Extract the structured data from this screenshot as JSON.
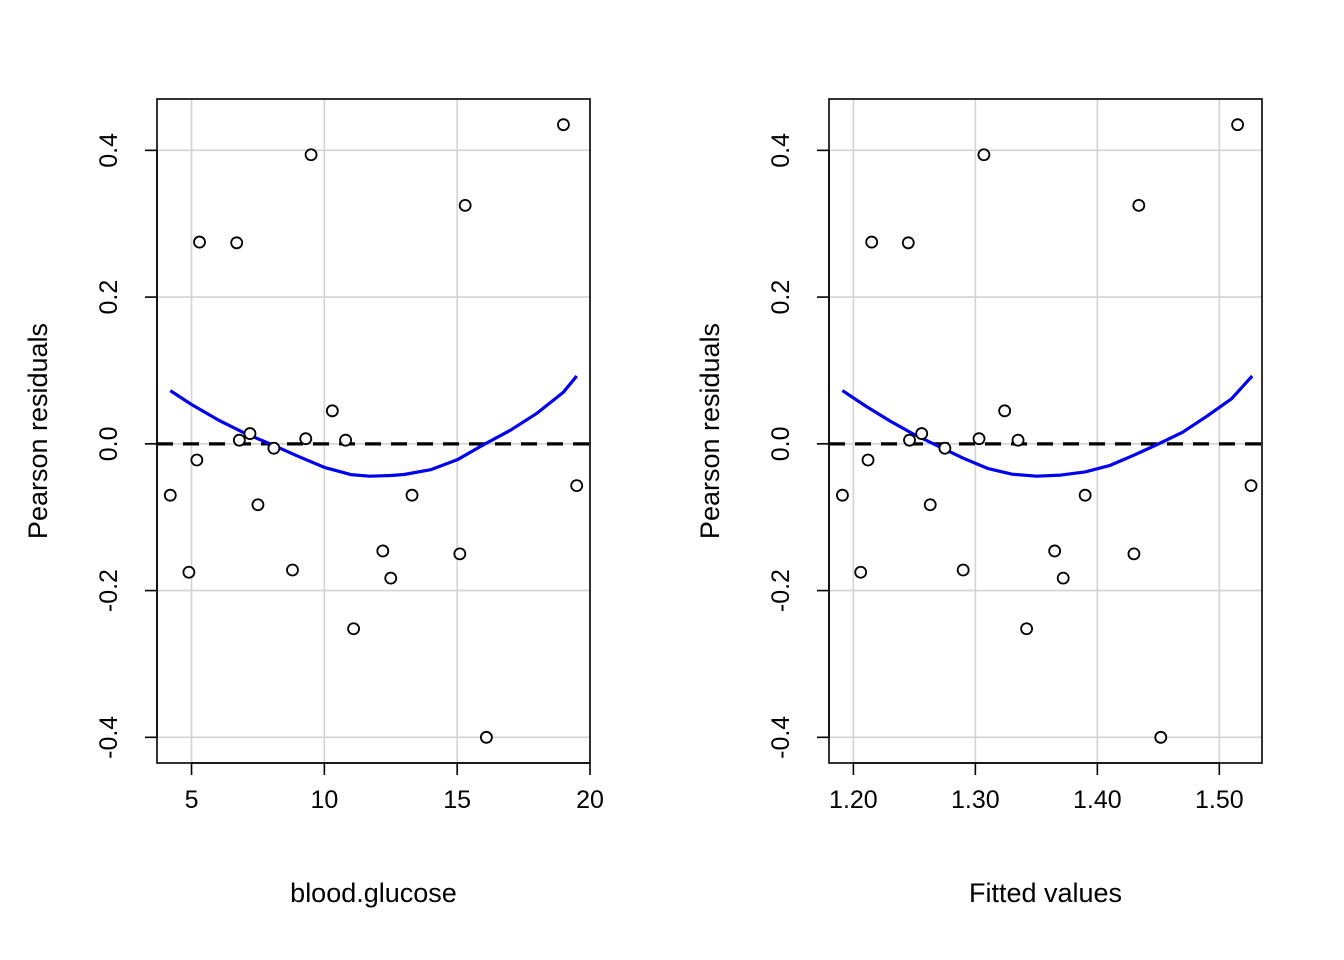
{
  "chart_data": [
    {
      "type": "scatter",
      "title": "",
      "xlabel": "blood.glucose",
      "ylabel": "Pearson residuals",
      "xlim": [
        3.7,
        20.0
      ],
      "ylim": [
        -0.435,
        0.47
      ],
      "xticks": [
        5,
        10,
        15,
        20
      ],
      "xtick_labels": [
        "5",
        "10",
        "15",
        "20"
      ],
      "yticks": [
        -0.4,
        -0.2,
        0.0,
        0.2,
        0.4
      ],
      "ytick_labels": [
        "-0.4",
        "-0.2",
        "0.0",
        "0.2",
        "0.4"
      ],
      "grid": true,
      "reference_line": {
        "y": 0,
        "style": "dashed",
        "color": "#000000"
      },
      "smooth_color": "#0000ee",
      "point_color": "#000000",
      "points": {
        "x": [
          4.2,
          4.9,
          5.2,
          5.3,
          6.7,
          6.8,
          7.2,
          7.5,
          8.1,
          8.8,
          9.3,
          9.5,
          10.3,
          10.8,
          11.1,
          12.2,
          12.5,
          13.3,
          15.1,
          15.3,
          16.1,
          19.0,
          19.5
        ],
        "y": [
          -0.07,
          -0.175,
          -0.022,
          0.275,
          0.274,
          0.005,
          0.014,
          -0.083,
          -0.006,
          -0.172,
          0.007,
          0.394,
          0.045,
          0.005,
          -0.252,
          -0.146,
          -0.183,
          -0.07,
          -0.15,
          0.325,
          -0.4,
          0.435,
          -0.057
        ]
      },
      "smooth": {
        "x": [
          4.2,
          5.0,
          6.0,
          7.0,
          8.0,
          9.0,
          10.0,
          11.0,
          11.7,
          12.5,
          13.0,
          14.0,
          15.0,
          16.0,
          17.0,
          18.0,
          19.0,
          19.5
        ],
        "y": [
          0.0725,
          0.0536,
          0.0326,
          0.0145,
          -0.0006,
          -0.0168,
          -0.0321,
          -0.0419,
          -0.0441,
          -0.0432,
          -0.0418,
          -0.0353,
          -0.0217,
          -0.0011,
          0.0184,
          0.0416,
          0.0704,
          0.0925
        ]
      }
    },
    {
      "type": "scatter",
      "title": "",
      "xlabel": "Fitted values",
      "ylabel": "Pearson residuals",
      "xlim": [
        1.18,
        1.535
      ],
      "ylim": [
        -0.435,
        0.47
      ],
      "xticks": [
        1.2,
        1.3,
        1.4,
        1.5
      ],
      "xtick_labels": [
        "1.20",
        "1.30",
        "1.40",
        "1.50"
      ],
      "yticks": [
        -0.4,
        -0.2,
        0.0,
        0.2,
        0.4
      ],
      "ytick_labels": [
        "-0.4",
        "-0.2",
        "0.0",
        "0.2",
        "0.4"
      ],
      "grid": true,
      "reference_line": {
        "y": 0,
        "style": "dashed",
        "color": "#000000"
      },
      "smooth_color": "#0000ee",
      "point_color": "#000000",
      "points": {
        "x": [
          1.191,
          1.206,
          1.212,
          1.215,
          1.245,
          1.246,
          1.256,
          1.263,
          1.275,
          1.29,
          1.303,
          1.307,
          1.324,
          1.335,
          1.342,
          1.365,
          1.372,
          1.39,
          1.43,
          1.434,
          1.452,
          1.515,
          1.526
        ],
        "y": [
          -0.07,
          -0.175,
          -0.022,
          0.275,
          0.274,
          0.005,
          0.014,
          -0.083,
          -0.006,
          -0.172,
          0.007,
          0.394,
          0.045,
          0.005,
          -0.252,
          -0.146,
          -0.183,
          -0.07,
          -0.15,
          0.325,
          -0.4,
          0.435,
          -0.057
        ]
      },
      "smooth": {
        "x": [
          1.191,
          1.21,
          1.23,
          1.25,
          1.27,
          1.29,
          1.31,
          1.33,
          1.35,
          1.37,
          1.39,
          1.41,
          1.43,
          1.45,
          1.47,
          1.49,
          1.51,
          1.527
        ],
        "y": [
          0.0725,
          0.0516,
          0.0311,
          0.0126,
          -0.0035,
          -0.0196,
          -0.0335,
          -0.0414,
          -0.0441,
          -0.0426,
          -0.0382,
          -0.0297,
          -0.0155,
          -0.0002,
          0.0159,
          0.0378,
          0.0614,
          0.0925
        ]
      }
    }
  ]
}
